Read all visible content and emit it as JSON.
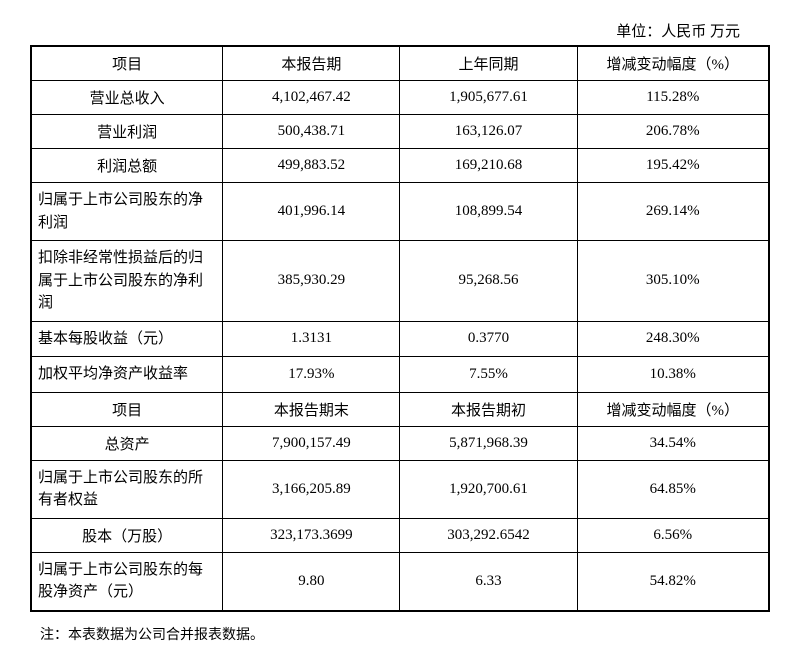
{
  "unit_label": "单位：人民币 万元",
  "table1": {
    "headers": [
      "项目",
      "本报告期",
      "上年同期",
      "增减变动幅度（%）"
    ],
    "rows": [
      {
        "label": "营业总收入",
        "v1": "4,102,467.42",
        "v2": "1,905,677.61",
        "change": "115.28%",
        "align": "center"
      },
      {
        "label": "营业利润",
        "v1": "500,438.71",
        "v2": "163,126.07",
        "change": "206.78%",
        "align": "center"
      },
      {
        "label": "利润总额",
        "v1": "499,883.52",
        "v2": "169,210.68",
        "change": "195.42%",
        "align": "center"
      },
      {
        "label": "归属于上市公司股东的净利润",
        "v1": "401,996.14",
        "v2": "108,899.54",
        "change": "269.14%",
        "align": "left"
      },
      {
        "label": "扣除非经常性损益后的归属于上市公司股东的净利润",
        "v1": "385,930.29",
        "v2": "95,268.56",
        "change": "305.10%",
        "align": "left"
      },
      {
        "label": "基本每股收益（元）",
        "v1": "1.3131",
        "v2": "0.3770",
        "change": "248.30%",
        "align": "left"
      },
      {
        "label": "加权平均净资产收益率",
        "v1": "17.93%",
        "v2": "7.55%",
        "change": "10.38%",
        "align": "left"
      }
    ]
  },
  "table2": {
    "headers": [
      "项目",
      "本报告期末",
      "本报告期初",
      "增减变动幅度（%）"
    ],
    "rows": [
      {
        "label": "总资产",
        "v1": "7,900,157.49",
        "v2": "5,871,968.39",
        "change": "34.54%",
        "align": "center"
      },
      {
        "label": "归属于上市公司股东的所有者权益",
        "v1": "3,166,205.89",
        "v2": "1,920,700.61",
        "change": "64.85%",
        "align": "left"
      },
      {
        "label": "股本（万股）",
        "v1": "323,173.3699",
        "v2": "303,292.6542",
        "change": "6.56%",
        "align": "center"
      },
      {
        "label": "归属于上市公司股东的每股净资产（元）",
        "v1": "9.80",
        "v2": "6.33",
        "change": "54.82%",
        "align": "left"
      }
    ]
  },
  "footnote": "注：本表数据为公司合并报表数据。"
}
